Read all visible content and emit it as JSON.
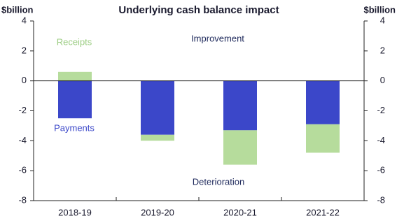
{
  "chart_data": {
    "type": "stacked_bar",
    "title": "Underlying cash balance impact",
    "y_label": "$billion",
    "y2_label": "$billion",
    "categories": [
      "2018-19",
      "2019-20",
      "2020-21",
      "2021-22"
    ],
    "series": [
      {
        "name": "Payments",
        "color": "#3b47c9",
        "values": [
          -2.5,
          -3.6,
          -3.3,
          -2.9
        ]
      },
      {
        "name": "Receipts",
        "color": "#b6dc9c",
        "values": [
          0.6,
          -0.4,
          -2.3,
          -1.9
        ]
      }
    ],
    "ylim": [
      -8,
      4
    ],
    "yticks": [
      -8,
      -6,
      -4,
      -2,
      0,
      2,
      4
    ],
    "y2lim": [
      -8,
      4
    ],
    "y2ticks": [
      -8,
      -6,
      -4,
      -2,
      0,
      2,
      4
    ],
    "annotations": [
      "Improvement",
      "Deterioration"
    ]
  }
}
